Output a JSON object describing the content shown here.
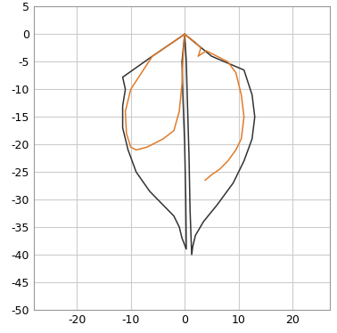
{
  "chart_data": {
    "type": "line",
    "xlim": [
      -28,
      27
    ],
    "xticks": [
      -20,
      -10,
      0,
      10,
      20
    ],
    "ylim": [
      -50,
      5
    ],
    "yticks": [
      5,
      0,
      -5,
      -10,
      -15,
      -20,
      -25,
      -30,
      -35,
      -40,
      -45,
      -50
    ],
    "grid": true,
    "series": [
      {
        "color": "#333333",
        "x": [
          0,
          -6,
          -11.5,
          -11,
          -11.5,
          -11.5,
          -10.5,
          -9,
          -6.5,
          -4,
          -2,
          -1,
          -0.5,
          0.3,
          0.2,
          0,
          -0.3,
          -0.5,
          0
        ],
        "values": [
          0,
          -4,
          -7.8,
          -10,
          -13,
          -17,
          -21,
          -25,
          -28.5,
          -31,
          -33,
          -35,
          -37,
          -39,
          -30,
          -20,
          -12,
          -5,
          0
        ]
      },
      {
        "color": "#333333",
        "x": [
          0,
          5,
          11,
          11.5,
          12.5,
          13,
          12.5,
          11,
          9,
          6,
          3.5,
          2,
          1.5,
          1.3,
          1,
          0.8,
          0.5,
          0.3,
          0
        ],
        "values": [
          0,
          -4,
          -6.5,
          -8,
          -11,
          -15,
          -19,
          -23,
          -27,
          -31,
          -34,
          -36.5,
          -38.5,
          -40,
          -32,
          -22,
          -12,
          -5,
          0
        ]
      },
      {
        "color": "#e07b2a",
        "x": [
          0,
          -3,
          -6,
          -8,
          -10,
          -11,
          -10.8,
          -10,
          -9,
          -7,
          -4,
          -2,
          -1,
          -0.5,
          -0.3,
          0
        ],
        "values": [
          0,
          -2,
          -4,
          -7,
          -10,
          -14,
          -18,
          -20.5,
          -21,
          -20.5,
          -19,
          -17.5,
          -14,
          -9,
          -4,
          0
        ]
      },
      {
        "color": "#e07b2a",
        "x": [
          0,
          2,
          3,
          2.5,
          4,
          6,
          8,
          9.5,
          10.5,
          11,
          10.5,
          9.5,
          8,
          6.5,
          5,
          3.8
        ],
        "values": [
          0,
          -1.5,
          -2.5,
          -4,
          -3,
          -4,
          -5,
          -7,
          -11,
          -15,
          -19,
          -21,
          -23,
          -24.5,
          -25.5,
          -26.5
        ]
      }
    ]
  }
}
